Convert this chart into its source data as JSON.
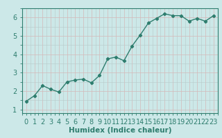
{
  "xlabel": "Humidex (Indice chaleur)",
  "x": [
    0,
    1,
    2,
    3,
    4,
    5,
    6,
    7,
    8,
    9,
    10,
    11,
    12,
    13,
    14,
    15,
    16,
    17,
    18,
    19,
    20,
    21,
    22,
    23
  ],
  "y": [
    1.45,
    1.75,
    2.3,
    2.1,
    1.95,
    2.5,
    2.6,
    2.65,
    2.45,
    2.85,
    3.75,
    3.85,
    3.65,
    4.45,
    5.05,
    5.7,
    5.95,
    6.2,
    6.1,
    6.1,
    5.8,
    5.95,
    5.8,
    6.1
  ],
  "line_color": "#2e7d6e",
  "marker": "D",
  "marker_size": 2.2,
  "bg_color": "#cce8e8",
  "grid_major_color": "#b8c8c8",
  "grid_minor_color": "#d4b8b8",
  "ylim": [
    0.8,
    6.5
  ],
  "xlim": [
    -0.5,
    23.5
  ],
  "yticks": [
    1,
    2,
    3,
    4,
    5,
    6
  ],
  "xticks": [
    0,
    1,
    2,
    3,
    4,
    5,
    6,
    7,
    8,
    9,
    10,
    11,
    12,
    13,
    14,
    15,
    16,
    17,
    18,
    19,
    20,
    21,
    22,
    23
  ],
  "xlabel_fontsize": 7.5,
  "tick_fontsize": 7.0
}
